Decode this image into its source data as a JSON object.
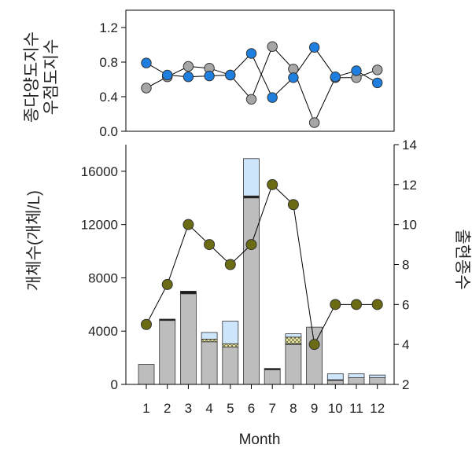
{
  "colors": {
    "grey_marker": "#a6a6a6",
    "blue_marker": "#1f7fe0",
    "olive_marker": "#6b6b13",
    "bar_grey": "#bdbdbd",
    "bar_lightblue": "#cde6fb",
    "bar_yellow": "#f2ef9a",
    "bar_dark": "#1a1a1a"
  },
  "chart_data": [
    {
      "type": "line",
      "ylabel": "종다양도지수",
      "ylabel2": "우점도지수",
      "ylim": [
        0.0,
        1.4
      ],
      "y_ticks": [
        "0.0",
        "0.4",
        "0.8",
        "1.2"
      ],
      "x": [
        1,
        2,
        3,
        4,
        5,
        6,
        7,
        8,
        9,
        10,
        11,
        12
      ],
      "series": [
        {
          "color": "grey",
          "values": [
            0.5,
            0.63,
            0.75,
            0.73,
            0.65,
            0.37,
            0.98,
            0.72,
            0.1,
            0.62,
            0.62,
            0.71
          ]
        },
        {
          "color": "blue",
          "values": [
            0.79,
            0.65,
            0.63,
            0.64,
            0.65,
            0.9,
            0.39,
            0.62,
            0.97,
            0.63,
            0.7,
            0.56
          ]
        }
      ]
    },
    {
      "type": "bar",
      "ylabel": "개체수(개체/L)",
      "ylabel_right": "출현종수",
      "xlabel": "Month",
      "categories": [
        "1",
        "2",
        "3",
        "4",
        "5",
        "6",
        "7",
        "8",
        "9",
        "10",
        "11",
        "12"
      ],
      "ylim": [
        0,
        18000
      ],
      "y_ticks": [
        "0",
        "4000",
        "8000",
        "12000",
        "16000"
      ],
      "y2lim": [
        2,
        14
      ],
      "y2_ticks": [
        "2",
        "4",
        "6",
        "8",
        "10",
        "12",
        "14"
      ],
      "stacks": [
        {
          "color": "grey",
          "values": [
            1500,
            4800,
            6800,
            3200,
            2800,
            14000,
            1100,
            3000,
            4300,
            300,
            500,
            500
          ]
        },
        {
          "color": "dark",
          "values": [
            0,
            100,
            200,
            0,
            0,
            150,
            100,
            50,
            0,
            50,
            0,
            0
          ]
        },
        {
          "color": "yellow",
          "values": [
            0,
            0,
            0,
            200,
            250,
            0,
            0,
            500,
            0,
            0,
            0,
            0
          ]
        },
        {
          "color": "lightblue",
          "values": [
            0,
            0,
            0,
            500,
            1700,
            2800,
            0,
            250,
            0,
            450,
            300,
            200
          ]
        }
      ],
      "line": {
        "color": "olive",
        "axis": "right",
        "values": [
          5,
          7,
          10,
          9,
          8,
          9,
          12,
          11,
          4,
          6,
          6,
          6
        ]
      }
    }
  ]
}
